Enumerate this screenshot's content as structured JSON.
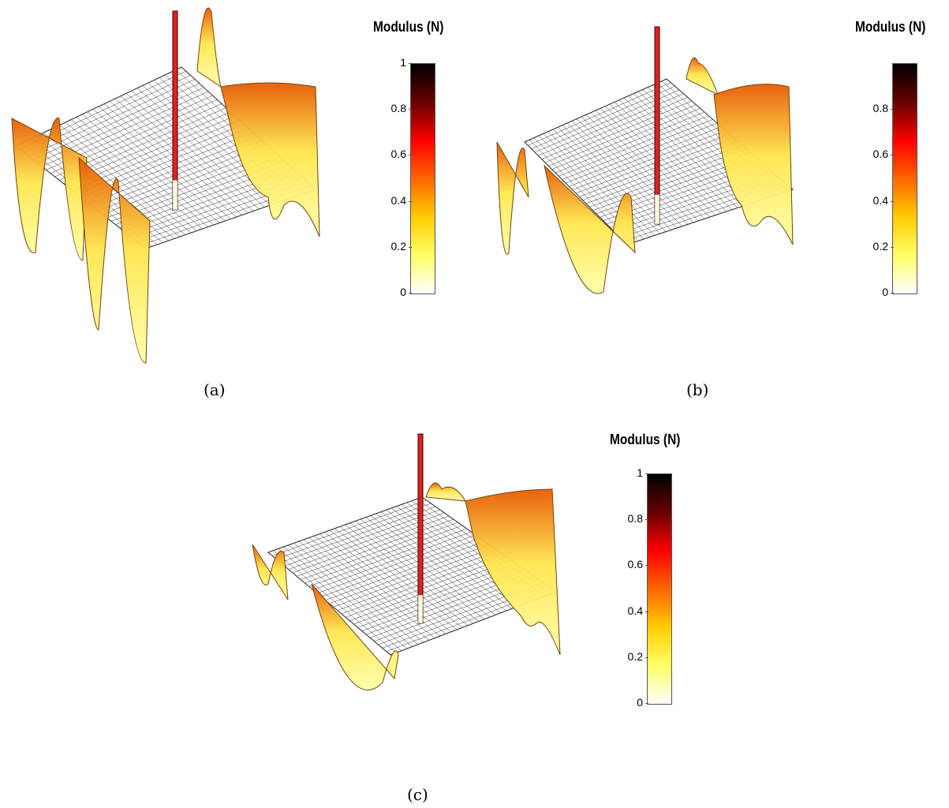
{
  "figure": {
    "panels": [
      {
        "id": "a",
        "caption": "(a)",
        "colorbar_title": "Modulus (N)",
        "colorbar_ticks": [
          "0",
          "0.2",
          "0.4",
          "0.6",
          "0.8",
          "1"
        ]
      },
      {
        "id": "b",
        "caption": "(b)",
        "colorbar_title": "Modulus (N)",
        "colorbar_ticks": [
          "0",
          "0.2",
          "0.4",
          "0.6",
          "0.8"
        ]
      },
      {
        "id": "c",
        "caption": "(c)",
        "colorbar_title": "Modulus (N)",
        "colorbar_ticks": [
          "0",
          "0.2",
          "0.4",
          "0.6",
          "0.8",
          "1"
        ]
      }
    ]
  },
  "colormap": [
    "#ffffff",
    "#ffff66",
    "#ffcc00",
    "#ff6600",
    "#ff0000",
    "#660000",
    "#000000"
  ],
  "chart_data": [
    {
      "type": "surface",
      "title": "",
      "colorbar_label": "Modulus (N)",
      "clim": [
        0,
        1
      ],
      "colorbar_ticks": [
        0,
        0.2,
        0.4,
        0.6,
        0.8,
        1
      ]
    },
    {
      "type": "surface",
      "title": "",
      "colorbar_label": "Modulus (N)",
      "clim": [
        0,
        1
      ],
      "colorbar_ticks": [
        0,
        0.2,
        0.4,
        0.6,
        0.8
      ]
    },
    {
      "type": "surface",
      "title": "",
      "colorbar_label": "Modulus (N)",
      "clim": [
        0,
        1
      ],
      "colorbar_ticks": [
        0,
        0.2,
        0.4,
        0.6,
        0.8,
        1
      ]
    }
  ]
}
